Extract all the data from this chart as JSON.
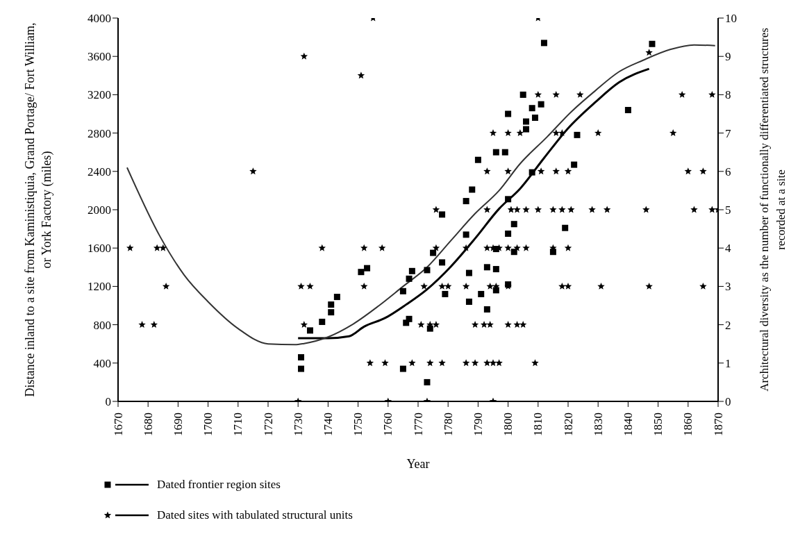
{
  "chart_data": {
    "type": "scatter",
    "xlabel": "Year",
    "ylabel": "Distance inland to a site from Kaministiquia, Grand Portage/ Fort William, or York Factory (miles)",
    "y2label": "Architectural diversity as the number of functionally differentiated structures recorded at a site",
    "xlim": [
      1670,
      1870
    ],
    "xticks": [
      1670,
      1680,
      1690,
      1700,
      1710,
      1720,
      1730,
      1740,
      1750,
      1760,
      1770,
      1780,
      1790,
      1800,
      1810,
      1820,
      1830,
      1840,
      1850,
      1860,
      1870
    ],
    "ylim": [
      0,
      4000
    ],
    "yticks": [
      0,
      400,
      800,
      1200,
      1600,
      2000,
      2400,
      2800,
      3200,
      3600,
      4000
    ],
    "y2lim": [
      0,
      10
    ],
    "y2ticks": [
      0,
      1,
      2,
      3,
      4,
      5,
      6,
      7,
      8,
      9,
      10
    ],
    "legend": "bottom",
    "grid": false,
    "series": [
      {
        "name": "Dated frontier region sites",
        "marker": "square",
        "color": "#000000",
        "x": [
          1731,
          1731,
          1734,
          1738,
          1741,
          1741,
          1743,
          1751,
          1753,
          1765,
          1765,
          1766,
          1767,
          1767,
          1768,
          1773,
          1774,
          1773,
          1775,
          1778,
          1778,
          1779,
          1786,
          1788,
          1790,
          1786,
          1787,
          1787,
          1793,
          1791,
          1793,
          1796,
          1796,
          1796,
          1796,
          1799,
          1800,
          1800,
          1800,
          1800,
          1802,
          1802,
          1805,
          1806,
          1806,
          1808,
          1809,
          1811,
          1812,
          1808,
          1819,
          1815,
          1822,
          1823,
          1840,
          1848
        ],
        "values": [
          460,
          340,
          740,
          830,
          930,
          1010,
          1090,
          1350,
          1390,
          340,
          1150,
          820,
          860,
          1280,
          1360,
          200,
          760,
          1370,
          1550,
          1450,
          1950,
          1120,
          2090,
          2210,
          2520,
          1740,
          1340,
          1040,
          1400,
          1120,
          960,
          1590,
          1380,
          1160,
          2600,
          2600,
          3000,
          2110,
          1750,
          1220,
          1850,
          1560,
          3200,
          2920,
          2840,
          3060,
          2960,
          3100,
          3740,
          2390,
          1810,
          1560,
          2470,
          2780,
          3040,
          3730
        ]
      },
      {
        "type": "line",
        "color": "#000000",
        "x": [
          1730,
          1740,
          1747,
          1752,
          1759,
          1766,
          1773,
          1781,
          1789,
          1797,
          1804,
          1812,
          1820,
          1829,
          1837,
          1847
        ],
        "values": [
          660,
          660,
          680,
          780,
          870,
          1010,
          1170,
          1410,
          1700,
          2010,
          2220,
          2540,
          2850,
          3120,
          3330,
          3470
        ]
      },
      {
        "name": "Dated sites with tabulated structural units",
        "marker": "star",
        "axis": "y2",
        "color": "#000000",
        "x": [
          1674,
          1683,
          1685,
          1686,
          1678,
          1682,
          1715,
          1732,
          1731,
          1734,
          1732,
          1730,
          1755,
          1751,
          1738,
          1752,
          1758,
          1752,
          1754,
          1759,
          1768,
          1774,
          1778,
          1760,
          1773,
          1795,
          1771,
          1774,
          1776,
          1772,
          1778,
          1780,
          1776,
          1776,
          1786,
          1786,
          1793,
          1793,
          1795,
          1797,
          1800,
          1794,
          1796,
          1800,
          1789,
          1792,
          1794,
          1800,
          1786,
          1789,
          1793,
          1795,
          1797,
          1795,
          1800,
          1793,
          1800,
          1810,
          1804,
          1810,
          1816,
          1824,
          1816,
          1818,
          1830,
          1855,
          1858,
          1868,
          1847,
          1811,
          1816,
          1820,
          1860,
          1865,
          1801,
          1803,
          1806,
          1810,
          1815,
          1818,
          1821,
          1828,
          1833,
          1846,
          1862,
          1868,
          1870,
          1803,
          1806,
          1815,
          1820,
          1818,
          1820,
          1831,
          1847,
          1865,
          1803,
          1805,
          1809
        ],
        "values": [
          4,
          4,
          4,
          3,
          2,
          2,
          6,
          9,
          3,
          3,
          2,
          0,
          10,
          8.5,
          4,
          4,
          4,
          3,
          1,
          1,
          1,
          1,
          1,
          0,
          0,
          0,
          2,
          2,
          2,
          3,
          3,
          3,
          4,
          5,
          3,
          4,
          5,
          4,
          4,
          4,
          4,
          3,
          3,
          3,
          2,
          2,
          2,
          2,
          1,
          1,
          1,
          1,
          1,
          7,
          7,
          6,
          6,
          10,
          7,
          8,
          8,
          8,
          7,
          7,
          7,
          7,
          8,
          8,
          9.1,
          6,
          6,
          6,
          6,
          6,
          5,
          5,
          5,
          5,
          5,
          5,
          5,
          5,
          5,
          5,
          5,
          5,
          5,
          4,
          4,
          4,
          4,
          3,
          3,
          3,
          3,
          3,
          2,
          2,
          1
        ]
      },
      {
        "type": "line",
        "axis": "y2",
        "color": "#333333",
        "x": [
          1673,
          1684,
          1692,
          1700,
          1710,
          1720,
          1729,
          1732,
          1740,
          1748,
          1757,
          1765,
          1773,
          1781,
          1789,
          1797,
          1804,
          1813,
          1821,
          1829,
          1837,
          1845,
          1854,
          1862,
          1869
        ],
        "values": [
          6.1,
          4.3,
          3.3,
          2.6,
          1.9,
          1.5,
          1.48,
          1.51,
          1.68,
          2.0,
          2.5,
          3.0,
          3.5,
          4.2,
          4.9,
          5.5,
          6.2,
          6.9,
          7.55,
          8.1,
          8.6,
          8.9,
          9.18,
          9.3,
          9.28
        ]
      }
    ]
  }
}
